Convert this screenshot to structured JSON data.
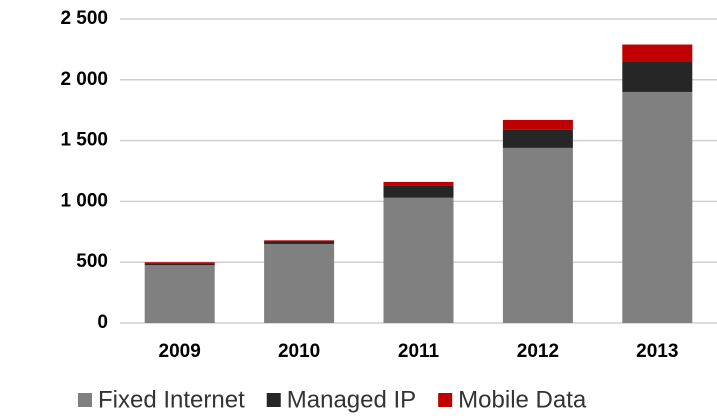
{
  "chart_data": {
    "type": "stacked_bar",
    "categories": [
      "2009",
      "2010",
      "2011",
      "2012",
      "2013"
    ],
    "series": [
      {
        "name": "Fixed Internet",
        "color": "#808080",
        "values": [
          475,
          650,
          1030,
          1440,
          1900
        ]
      },
      {
        "name": "Managed IP",
        "color": "#262626",
        "values": [
          15,
          20,
          100,
          150,
          250
        ]
      },
      {
        "name": "Mobile Data",
        "color": "#c00000",
        "values": [
          10,
          10,
          30,
          80,
          140
        ]
      }
    ],
    "ylim": [
      0,
      2500
    ],
    "yticks": [
      0,
      500,
      {
        "value": 1000,
        "label": "1 000"
      },
      {
        "value": 1500,
        "label": "1 500"
      },
      {
        "value": 2000,
        "label": "2 000"
      },
      {
        "value": 2500,
        "label": "2 500"
      }
    ],
    "grid": true,
    "legend": "bottom"
  }
}
